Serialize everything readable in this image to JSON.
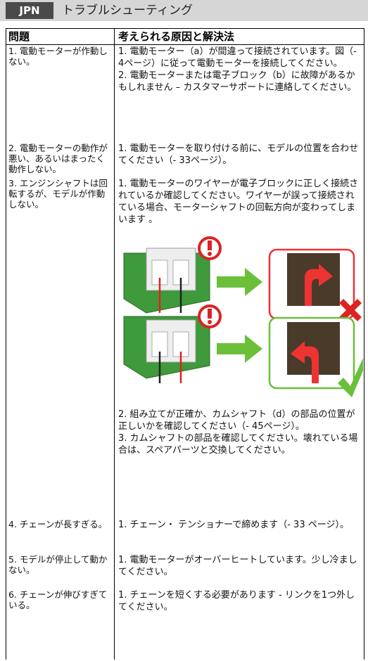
{
  "header": {
    "code": "JPN",
    "title": "トラブルシューティング"
  },
  "table": {
    "columns": [
      "問題",
      "考えられる原因と解決法"
    ],
    "rows": [
      {
        "problem": "1. 電動モーターが作動しない。",
        "solutions": [
          "1. 電動モーター（a）が間違って接続されています。図（- 4ページ）に従って電動モーターを接続してください。",
          "2. 電動モーターまたは電子ブロック（b）に故障があるかもしれません – カスタマーサポートに連絡してください。"
        ]
      },
      {
        "problem": "2. 電動モーターの動作が悪い、あるいはまったく動作しない。",
        "solutions": [
          "1. 電動モーターを取り付ける前に、モデルの位置を合わせてください（- 33ページ）。"
        ]
      },
      {
        "problem": "3. エンジンシャフトは回転するが、モデルが作動しない。",
        "solutions": [
          "1. 電動モーターのワイヤーが電子ブロックに正しく接続されているか確認してください。ワイヤーが誤って接続されている場合、モーターシャフトの回転方向が変わってしまいます 。"
        ],
        "after_figure": [
          "2. 組み立てが正確か、カムシャフト（d）の部品の位置が正しいかを確認してください（- 45ページ）。",
          "3. カムシャフトの部品を確認してください。壊れている場合は、スペアパーツと交換してください。"
        ]
      },
      {
        "problem": "4. チェーンが長すぎる。",
        "solutions": [
          "1. チェーン・ テンショナーで締めます（- 33 ページ）。"
        ]
      },
      {
        "problem": "5. モデルが停止して動かない。",
        "solutions": [
          "1. 電動モーターがオーバーヒートしています。少し冷ましてください。"
        ]
      },
      {
        "problem": "6. チェーンが伸びすぎている。",
        "solutions": [
          "1. チェーンを短くする必要があります - リンクを1つ外してください。"
        ]
      }
    ]
  }
}
